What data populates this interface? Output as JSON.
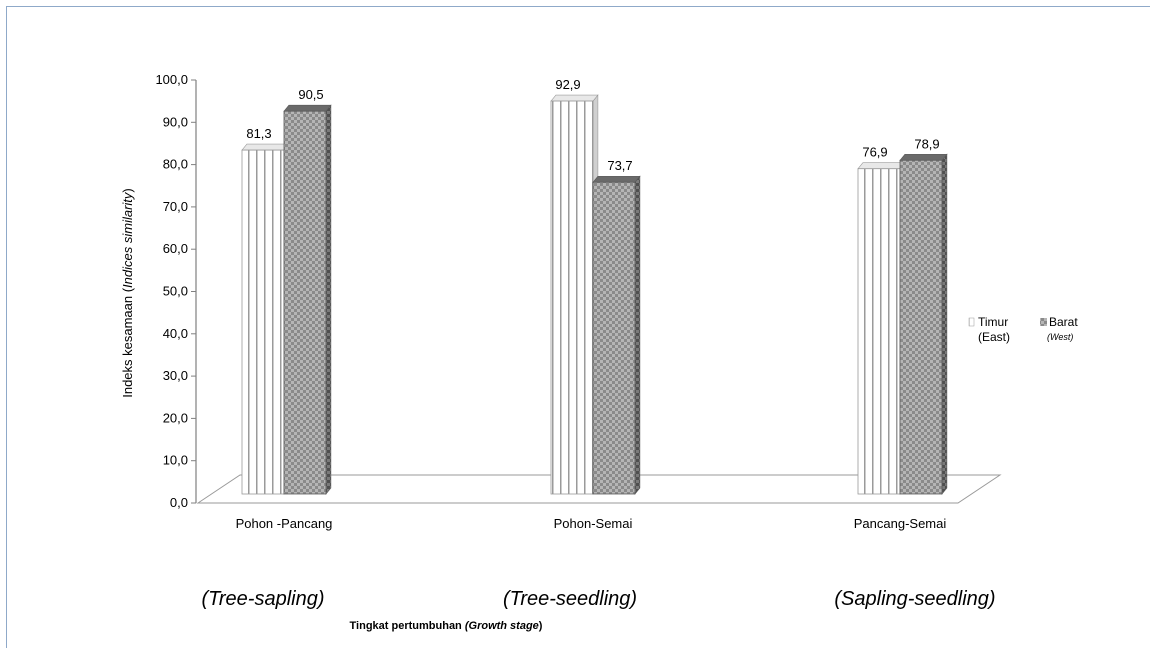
{
  "chart_data": {
    "type": "bar",
    "categories": [
      "Pohon -Pancang",
      "Pohon-Semai",
      "Pancang-Semai"
    ],
    "categories_en": [
      "(Tree-sapling)",
      "(Tree-seedling)",
      "(Sapling-seedling)"
    ],
    "series": [
      {
        "name": "Timur",
        "name_en": "(East)",
        "values": [
          81.3,
          92.9,
          76.9
        ],
        "labels": [
          "81,3",
          "92,9",
          "76,9"
        ]
      },
      {
        "name": "Barat",
        "name_en": "(West)",
        "values": [
          90.5,
          73.7,
          78.9
        ],
        "labels": [
          "90,5",
          "73,7",
          "78,9"
        ]
      }
    ],
    "ylabel_main": "Indeks kesamaan (",
    "ylabel_italic": "Indices similarity",
    "ylabel_end": ")",
    "xlabel_main": "Tingkat pertumbuhan ",
    "xlabel_italic": "(Growth  stage",
    "xlabel_end": ")",
    "ylim": [
      0,
      100
    ],
    "yticks": [
      0,
      10,
      20,
      30,
      40,
      50,
      60,
      70,
      80,
      90,
      100
    ],
    "ytick_labels": [
      "0,0",
      "10,0",
      "20,0",
      "30,0",
      "40,0",
      "50,0",
      "60,0",
      "70,0",
      "80,0",
      "90,0",
      "100,0"
    ],
    "legend_position": "right",
    "colors": {
      "east": "#ffffff",
      "west": "#8c8c8c",
      "west_dark": "#555555",
      "axis": "#808080"
    }
  }
}
